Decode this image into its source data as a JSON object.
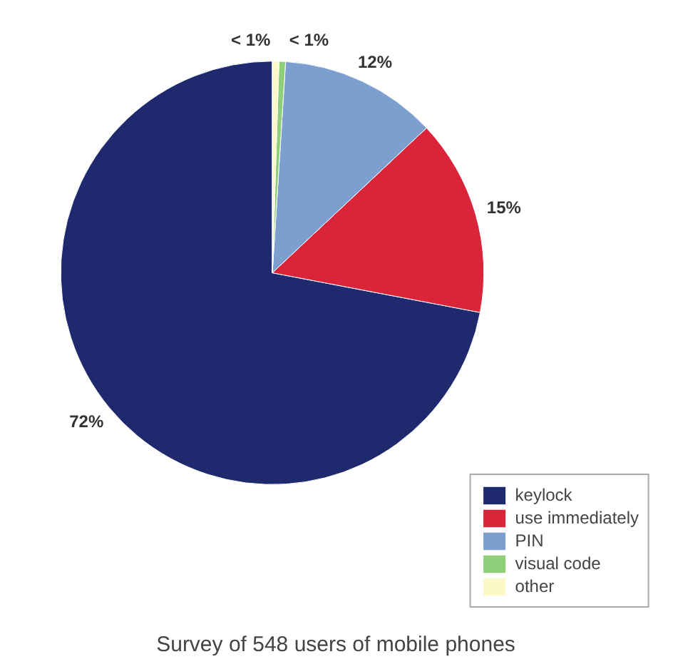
{
  "chart_data": {
    "type": "pie",
    "title": "Survey of 548 users of mobile phones",
    "categories": [
      "keylock",
      "use immediately",
      "PIN",
      "visual code",
      "other"
    ],
    "values": [
      72,
      15,
      12,
      0.5,
      0.5
    ],
    "value_labels": [
      "72%",
      "15%",
      "12%",
      "< 1%",
      "< 1%"
    ],
    "colors": [
      "#1f2a6e",
      "#d9243a",
      "#7c9fd0",
      "#8fcf7a",
      "#fdf8c8"
    ],
    "legend": "bottom right"
  }
}
